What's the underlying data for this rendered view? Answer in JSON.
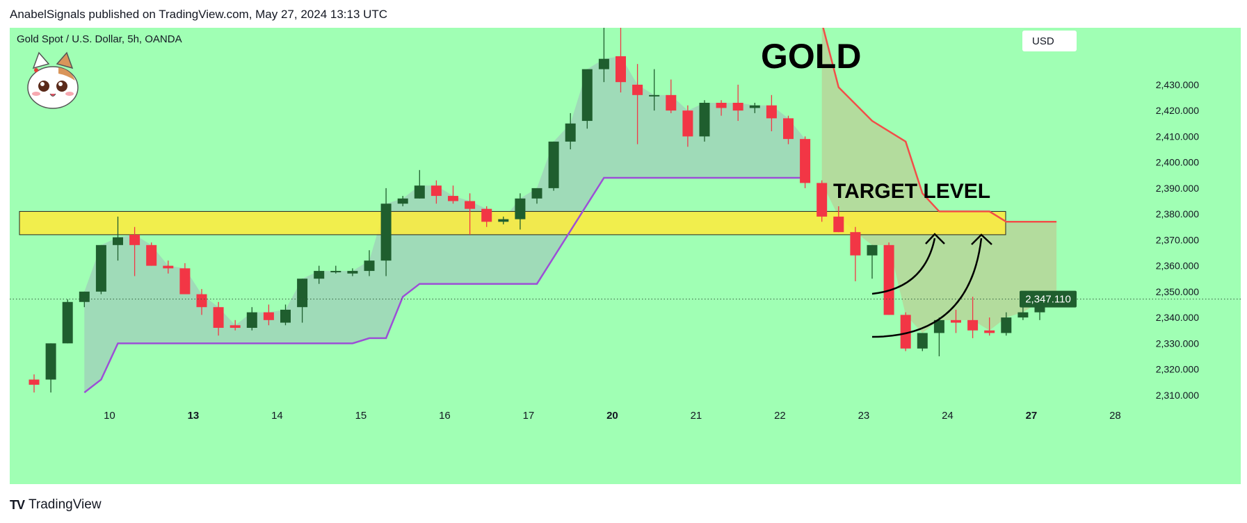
{
  "header": {
    "published_line": "AnabelSignals published on TradingView.com, May 27, 2024 13:13 UTC"
  },
  "footer": {
    "brand": "TradingView"
  },
  "chart_data": {
    "type": "candlestick",
    "title": "Gold Spot / U.S. Dollar, 5h, OANDA",
    "currency_button": "USD",
    "annotations": {
      "main": "GOLD",
      "target": "TARGET LEVEL"
    },
    "last_price": "2,347.110",
    "colors": {
      "background": "#a0ffb4",
      "up": "#1f5e2e",
      "down": "#f23645",
      "target_zone": "#ffeb3b",
      "supertrend_up": "#9c4fd6",
      "supertrend_down": "#f24e48",
      "price_badge": "#1f5e2e"
    },
    "ylim": [
      2307,
      2452
    ],
    "y_ticks": [
      {
        "v": 2310,
        "label": "2,310.000"
      },
      {
        "v": 2320,
        "label": "2,320.000"
      },
      {
        "v": 2330,
        "label": "2,330.000"
      },
      {
        "v": 2340,
        "label": "2,340.000"
      },
      {
        "v": 2350,
        "label": "2,350.000"
      },
      {
        "v": 2360,
        "label": "2,360.000"
      },
      {
        "v": 2370,
        "label": "2,370.000"
      },
      {
        "v": 2380,
        "label": "2,380.000"
      },
      {
        "v": 2390,
        "label": "2,390.000"
      },
      {
        "v": 2400,
        "label": "2,400.000"
      },
      {
        "v": 2410,
        "label": "2,410.000"
      },
      {
        "v": 2420,
        "label": "2,420.000"
      },
      {
        "v": 2430,
        "label": "2,430.000"
      }
    ],
    "x_ticks": [
      {
        "i": 4.5,
        "label": "10",
        "bold": false
      },
      {
        "i": 9.5,
        "label": "13",
        "bold": true
      },
      {
        "i": 14.5,
        "label": "14",
        "bold": false
      },
      {
        "i": 19.5,
        "label": "15",
        "bold": false
      },
      {
        "i": 24.5,
        "label": "16",
        "bold": false
      },
      {
        "i": 29.5,
        "label": "17",
        "bold": false
      },
      {
        "i": 34.5,
        "label": "20",
        "bold": true
      },
      {
        "i": 39.5,
        "label": "21",
        "bold": false
      },
      {
        "i": 44.5,
        "label": "22",
        "bold": false
      },
      {
        "i": 49.5,
        "label": "23",
        "bold": false
      },
      {
        "i": 54.5,
        "label": "24",
        "bold": false
      },
      {
        "i": 59.5,
        "label": "27",
        "bold": true
      },
      {
        "i": 64.5,
        "label": "28",
        "bold": false
      }
    ],
    "target_zone": [
      2372,
      2381
    ],
    "candles": [
      {
        "o": 2316,
        "h": 2318,
        "l": 2311,
        "c": 2314
      },
      {
        "o": 2316,
        "h": 2330,
        "l": 2311,
        "c": 2330
      },
      {
        "o": 2330,
        "h": 2347,
        "l": 2330,
        "c": 2346
      },
      {
        "o": 2346,
        "h": 2350,
        "l": 2344,
        "c": 2350
      },
      {
        "o": 2350,
        "h": 2368,
        "l": 2349,
        "c": 2368
      },
      {
        "o": 2368,
        "h": 2379,
        "l": 2362,
        "c": 2371
      },
      {
        "o": 2372,
        "h": 2375,
        "l": 2356,
        "c": 2368
      },
      {
        "o": 2368,
        "h": 2369,
        "l": 2360,
        "c": 2360
      },
      {
        "o": 2360,
        "h": 2362,
        "l": 2357,
        "c": 2359
      },
      {
        "o": 2359,
        "h": 2361,
        "l": 2350,
        "c": 2349
      },
      {
        "o": 2349,
        "h": 2351,
        "l": 2341,
        "c": 2344
      },
      {
        "o": 2344,
        "h": 2346,
        "l": 2333,
        "c": 2336
      },
      {
        "o": 2337,
        "h": 2339,
        "l": 2335,
        "c": 2336
      },
      {
        "o": 2336,
        "h": 2344,
        "l": 2335,
        "c": 2342
      },
      {
        "o": 2342,
        "h": 2345,
        "l": 2337,
        "c": 2339
      },
      {
        "o": 2338,
        "h": 2345,
        "l": 2337,
        "c": 2343
      },
      {
        "o": 2344,
        "h": 2355,
        "l": 2338,
        "c": 2355
      },
      {
        "o": 2355,
        "h": 2360,
        "l": 2353,
        "c": 2358
      },
      {
        "o": 2358,
        "h": 2360,
        "l": 2357,
        "c": 2358
      },
      {
        "o": 2357,
        "h": 2359,
        "l": 2356,
        "c": 2358
      },
      {
        "o": 2358,
        "h": 2366,
        "l": 2356,
        "c": 2362
      },
      {
        "o": 2362,
        "h": 2390,
        "l": 2356,
        "c": 2384
      },
      {
        "o": 2384,
        "h": 2387,
        "l": 2383,
        "c": 2386
      },
      {
        "o": 2386,
        "h": 2397,
        "l": 2386,
        "c": 2391
      },
      {
        "o": 2391,
        "h": 2393,
        "l": 2384,
        "c": 2387
      },
      {
        "o": 2387,
        "h": 2391,
        "l": 2384,
        "c": 2385
      },
      {
        "o": 2385,
        "h": 2388,
        "l": 2372,
        "c": 2382
      },
      {
        "o": 2382,
        "h": 2383,
        "l": 2375,
        "c": 2377
      },
      {
        "o": 2377,
        "h": 2379,
        "l": 2376,
        "c": 2378
      },
      {
        "o": 2378,
        "h": 2388,
        "l": 2374,
        "c": 2386
      },
      {
        "o": 2386,
        "h": 2390,
        "l": 2384,
        "c": 2390
      },
      {
        "o": 2390,
        "h": 2408,
        "l": 2389,
        "c": 2408
      },
      {
        "o": 2408,
        "h": 2419,
        "l": 2405,
        "c": 2415
      },
      {
        "o": 2416,
        "h": 2436,
        "l": 2413,
        "c": 2436
      },
      {
        "o": 2436,
        "h": 2452,
        "l": 2431,
        "c": 2440
      },
      {
        "o": 2441,
        "h": 2452,
        "l": 2427,
        "c": 2431
      },
      {
        "o": 2430,
        "h": 2438,
        "l": 2407,
        "c": 2426
      },
      {
        "o": 2426,
        "h": 2436,
        "l": 2420,
        "c": 2426
      },
      {
        "o": 2426,
        "h": 2432,
        "l": 2419,
        "c": 2420
      },
      {
        "o": 2420,
        "h": 2422,
        "l": 2406,
        "c": 2410
      },
      {
        "o": 2410,
        "h": 2424,
        "l": 2408,
        "c": 2423
      },
      {
        "o": 2423,
        "h": 2424,
        "l": 2418,
        "c": 2421
      },
      {
        "o": 2423,
        "h": 2430,
        "l": 2416,
        "c": 2420
      },
      {
        "o": 2421,
        "h": 2423,
        "l": 2419,
        "c": 2422
      },
      {
        "o": 2422,
        "h": 2426,
        "l": 2412,
        "c": 2417
      },
      {
        "o": 2417,
        "h": 2418,
        "l": 2407,
        "c": 2409
      },
      {
        "o": 2409,
        "h": 2410,
        "l": 2390,
        "c": 2392
      },
      {
        "o": 2392,
        "h": 2393,
        "l": 2377,
        "c": 2379
      },
      {
        "o": 2379,
        "h": 2383,
        "l": 2373,
        "c": 2373
      },
      {
        "o": 2373,
        "h": 2375,
        "l": 2354,
        "c": 2364
      },
      {
        "o": 2364,
        "h": 2368,
        "l": 2355,
        "c": 2368
      },
      {
        "o": 2368,
        "h": 2369,
        "l": 2341,
        "c": 2341
      },
      {
        "o": 2341,
        "h": 2342,
        "l": 2327,
        "c": 2328
      },
      {
        "o": 2328,
        "h": 2334,
        "l": 2327,
        "c": 2334
      },
      {
        "o": 2334,
        "h": 2340,
        "l": 2325,
        "c": 2339
      },
      {
        "o": 2339,
        "h": 2343,
        "l": 2334,
        "c": 2338
      },
      {
        "o": 2339,
        "h": 2348,
        "l": 2332,
        "c": 2335
      },
      {
        "o": 2335,
        "h": 2340,
        "l": 2333,
        "c": 2334
      },
      {
        "o": 2334,
        "h": 2342,
        "l": 2333,
        "c": 2340
      },
      {
        "o": 2340,
        "h": 2347,
        "l": 2339,
        "c": 2342
      },
      {
        "o": 2342,
        "h": 2348,
        "l": 2339,
        "c": 2346
      },
      {
        "o": 2346,
        "h": 2350,
        "l": 2344,
        "c": 2348
      }
    ],
    "supertrend_up": [
      {
        "i": 3,
        "v": 2311
      },
      {
        "i": 4,
        "v": 2316
      },
      {
        "i": 5,
        "v": 2330
      },
      {
        "i": 19,
        "v": 2330
      },
      {
        "i": 20,
        "v": 2332
      },
      {
        "i": 21,
        "v": 2332
      },
      {
        "i": 22,
        "v": 2348
      },
      {
        "i": 23,
        "v": 2353
      },
      {
        "i": 30,
        "v": 2353
      },
      {
        "i": 34,
        "v": 2394
      },
      {
        "i": 46,
        "v": 2394
      }
    ],
    "supertrend_down": [
      {
        "i": 47,
        "v": 2454
      },
      {
        "i": 48,
        "v": 2429
      },
      {
        "i": 50,
        "v": 2416
      },
      {
        "i": 52,
        "v": 2408
      },
      {
        "i": 53,
        "v": 2388
      },
      {
        "i": 54,
        "v": 2381
      },
      {
        "i": 57,
        "v": 2381
      },
      {
        "i": 58,
        "v": 2377
      },
      {
        "i": 61,
        "v": 2377
      }
    ]
  }
}
